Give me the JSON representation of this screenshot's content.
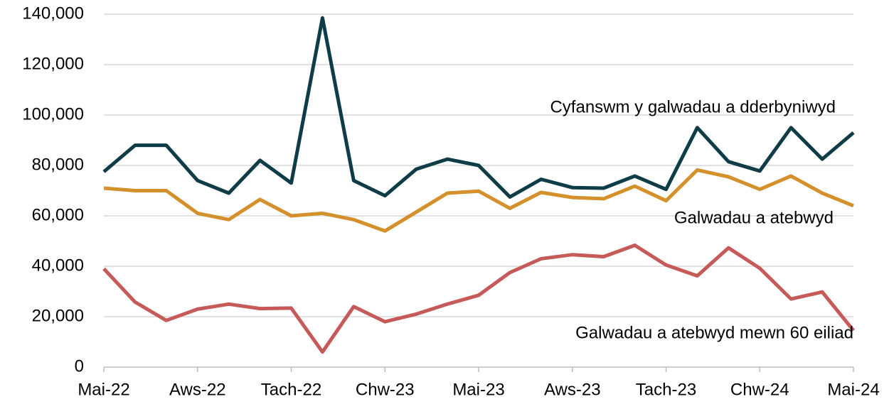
{
  "chart_data": {
    "type": "line",
    "categories": [
      "Mai-22",
      null,
      null,
      "Aws-22",
      null,
      null,
      "Tach-22",
      null,
      null,
      "Chw-23",
      null,
      null,
      "Mai-23",
      null,
      null,
      "Aws-23",
      null,
      null,
      "Tach-23",
      null,
      null,
      "Chw-24",
      null,
      null,
      "Mai-24"
    ],
    "series": [
      {
        "name": "Cyfanswm y galwadau a dderbyniwyd",
        "color": "#0f3d47",
        "values": [
          77500,
          88000,
          88000,
          74000,
          69000,
          82000,
          73000,
          138500,
          74000,
          68000,
          78500,
          82500,
          80000,
          67500,
          74500,
          71200,
          71000,
          75800,
          70500,
          95000,
          81500,
          77800,
          95000,
          82500,
          93000
        ]
      },
      {
        "name": "Galwadau a atebwyd",
        "color": "#d4902b",
        "values": [
          71000,
          70000,
          70000,
          61000,
          58500,
          66500,
          60000,
          61000,
          58500,
          54000,
          61500,
          69000,
          69800,
          63000,
          69300,
          67300,
          66800,
          71800,
          66000,
          78200,
          75500,
          70500,
          75800,
          69000,
          64000
        ]
      },
      {
        "name": "Galwadau a atebwyd mewn 60 eiliad",
        "color": "#c55a58",
        "values": [
          39000,
          25800,
          18500,
          23000,
          25000,
          23200,
          23400,
          6000,
          24000,
          18000,
          21000,
          25000,
          28500,
          37500,
          43000,
          44600,
          43800,
          48300,
          40500,
          36200,
          47300,
          39200,
          27000,
          29800,
          14500
        ]
      }
    ],
    "ylim": [
      0,
      140000
    ],
    "yticks": [
      0,
      {
        "value": 20000,
        "label": "20,000"
      },
      {
        "value": 40000,
        "label": "40,000"
      },
      {
        "value": 60000,
        "label": "60,000"
      },
      {
        "value": 80000,
        "label": "80,000"
      },
      {
        "value": 100000,
        "label": "100,000"
      },
      {
        "value": 120000,
        "label": "120,000"
      },
      {
        "value": 140000,
        "label": "140,000"
      }
    ],
    "grid": true
  }
}
